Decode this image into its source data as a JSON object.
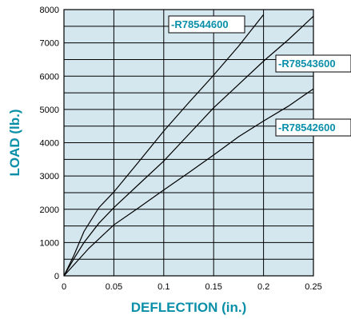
{
  "colors": {
    "plot_background": "#d4e6ee",
    "grid": "#000000",
    "lines": "#000000",
    "label_text": "#0a8fa8",
    "axis_title": "#0a8fa8",
    "label_box_bg": "#ffffff"
  },
  "chart_data": {
    "type": "line",
    "title": "",
    "xlabel": "DEFLECTION (in.)",
    "ylabel": "LOAD (lb.)",
    "xlim": [
      0,
      0.25
    ],
    "ylim": [
      0,
      8000
    ],
    "grid": true,
    "x_ticks": [
      0,
      0.05,
      0.1,
      0.15,
      0.2,
      0.25
    ],
    "x_tick_labels": [
      "0",
      "0.05",
      "0.1",
      "0.15",
      "0.2",
      "0.25"
    ],
    "y_ticks": [
      0,
      1000,
      2000,
      3000,
      4000,
      5000,
      6000,
      7000,
      8000
    ],
    "y_tick_labels": [
      "0",
      "1000",
      "2000",
      "3000",
      "4000",
      "5000",
      "6000",
      "7000",
      "8000"
    ],
    "series": [
      {
        "name": "-R78544600",
        "x": [
          0,
          0.01,
          0.02,
          0.035,
          0.05,
          0.075,
          0.1,
          0.125,
          0.15,
          0.175,
          0.2
        ],
        "y": [
          0,
          620,
          1330,
          2050,
          2520,
          3430,
          4350,
          5200,
          6030,
          6900,
          7850
        ]
      },
      {
        "name": "-R78543600",
        "x": [
          0,
          0.01,
          0.02,
          0.035,
          0.05,
          0.075,
          0.1,
          0.125,
          0.15,
          0.175,
          0.2,
          0.225,
          0.25
        ],
        "y": [
          0,
          520,
          1000,
          1580,
          2050,
          2750,
          3450,
          4250,
          5050,
          5750,
          6450,
          7100,
          7800
        ]
      },
      {
        "name": "-R78542600",
        "x": [
          0,
          0.025,
          0.05,
          0.075,
          0.1,
          0.125,
          0.15,
          0.175,
          0.2,
          0.225,
          0.25
        ],
        "y": [
          0,
          830,
          1530,
          2050,
          2580,
          3100,
          3630,
          4180,
          4650,
          5100,
          5620
        ]
      }
    ]
  }
}
